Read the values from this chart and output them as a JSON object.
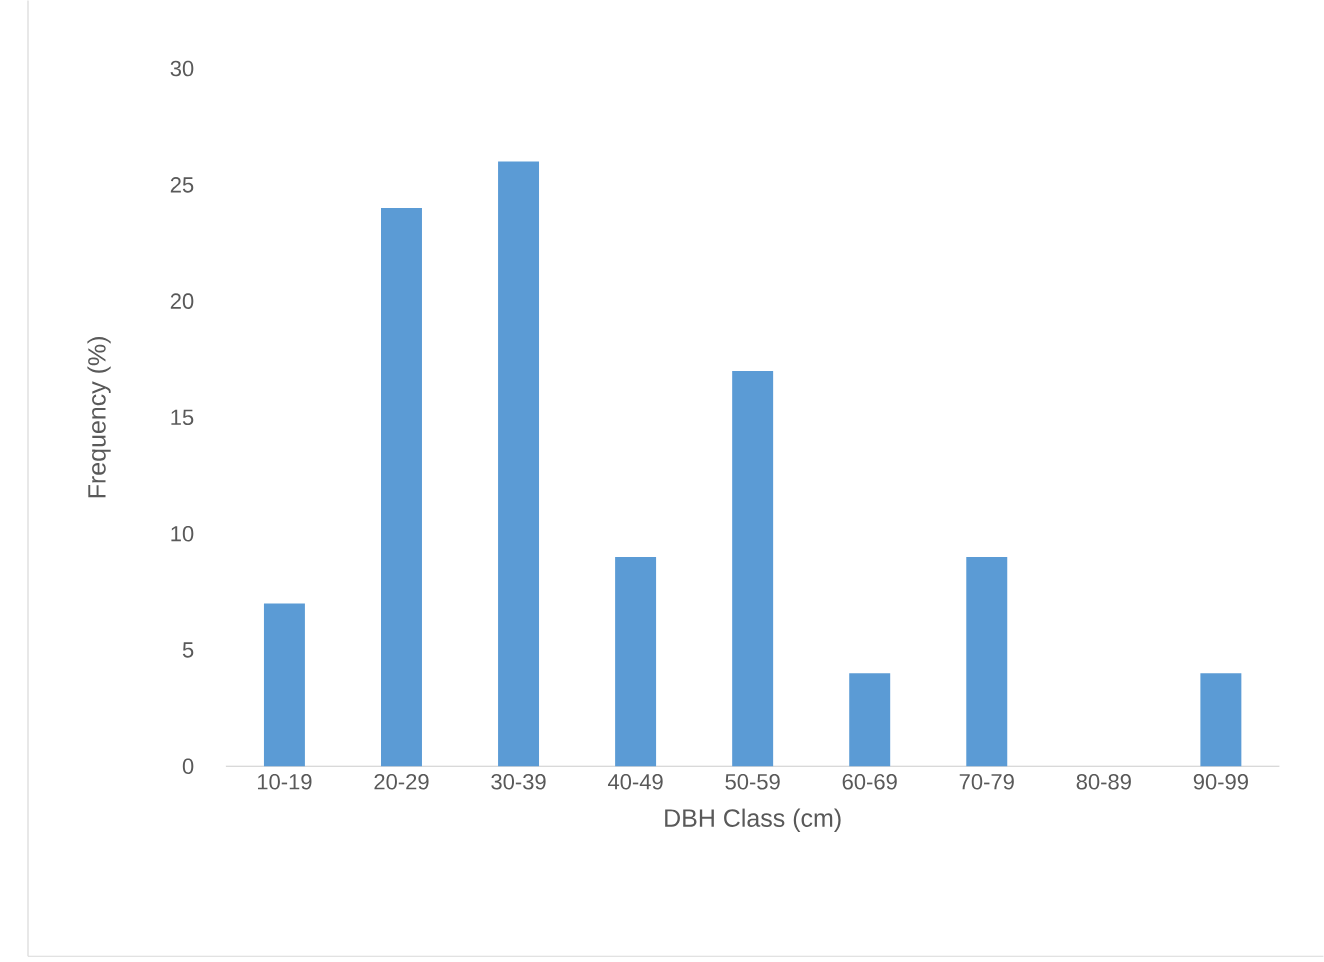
{
  "chart_data": {
    "type": "bar",
    "xlabel": "DBH Class (cm)",
    "ylabel": "Frequency (%)",
    "categories": [
      "10-19",
      "20-29",
      "30-39",
      "40-49",
      "50-59",
      "60-69",
      "70-79",
      "80-89",
      "90-99"
    ],
    "values": [
      7,
      24,
      26,
      9,
      17,
      4,
      9,
      0,
      4
    ],
    "color": "#5b9bd5",
    "ylim": [
      0,
      30
    ],
    "yticks": [
      0,
      5,
      10,
      15,
      20,
      25,
      30
    ]
  }
}
